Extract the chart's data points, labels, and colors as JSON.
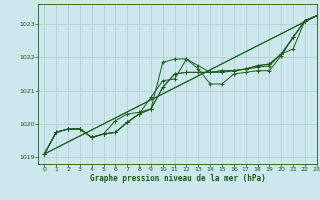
{
  "background_color": "#cce8ec",
  "grid_color": "#aacccc",
  "line_color": "#1a5c1a",
  "marker_color": "#1a5c1a",
  "xlabel": "Graphe pression niveau de la mer (hPa)",
  "xlim": [
    -0.5,
    23
  ],
  "ylim": [
    1018.8,
    1023.6
  ],
  "yticks": [
    1019,
    1020,
    1021,
    1022,
    1023
  ],
  "xticks": [
    0,
    1,
    2,
    3,
    4,
    5,
    6,
    7,
    8,
    9,
    10,
    11,
    12,
    13,
    14,
    15,
    16,
    17,
    18,
    19,
    20,
    21,
    22,
    23
  ],
  "series": [
    [
      1019.1,
      1019.75,
      1019.85,
      1019.85,
      1019.6,
      1019.7,
      1020.1,
      1020.3,
      1020.35,
      1020.45,
      1021.85,
      1021.95,
      1021.95,
      1021.65,
      1021.2,
      1021.2,
      1021.5,
      1021.55,
      1021.6,
      1021.6,
      1022.05,
      1022.6,
      1023.1,
      1023.25
    ],
    [
      1019.1,
      1019.75,
      1019.85,
      1019.85,
      1019.6,
      1019.7,
      1019.75,
      1020.05,
      1020.3,
      1020.8,
      1021.3,
      1021.35,
      1021.95,
      1021.75,
      1021.55,
      1021.55,
      1021.6,
      1021.65,
      1021.7,
      1021.75,
      1022.1,
      1022.25,
      1023.1,
      1023.25
    ],
    [
      1019.1,
      1019.75,
      1019.85,
      1019.85,
      1019.6,
      1019.7,
      1019.75,
      1020.05,
      1020.3,
      1020.45,
      1021.1,
      1021.5,
      1021.55,
      1021.55,
      1021.55,
      1021.6,
      1021.6,
      1021.65,
      1021.75,
      1021.8,
      1022.1,
      1022.6,
      1023.1,
      1023.25
    ],
    [
      1019.1,
      1019.75,
      1019.85,
      1019.85,
      1019.6,
      1019.7,
      1019.75,
      1020.05,
      1020.3,
      1020.45,
      1021.1,
      1021.5,
      1021.55,
      1021.55,
      1021.55,
      1021.6,
      1021.6,
      1021.65,
      1021.75,
      1021.8,
      1022.1,
      1022.6,
      1023.1,
      1023.25
    ]
  ],
  "series_straight": [
    {
      "x": [
        0,
        23
      ],
      "y": [
        1019.1,
        1023.25
      ]
    },
    {
      "x": [
        0,
        23
      ],
      "y": [
        1019.1,
        1023.25
      ]
    }
  ]
}
